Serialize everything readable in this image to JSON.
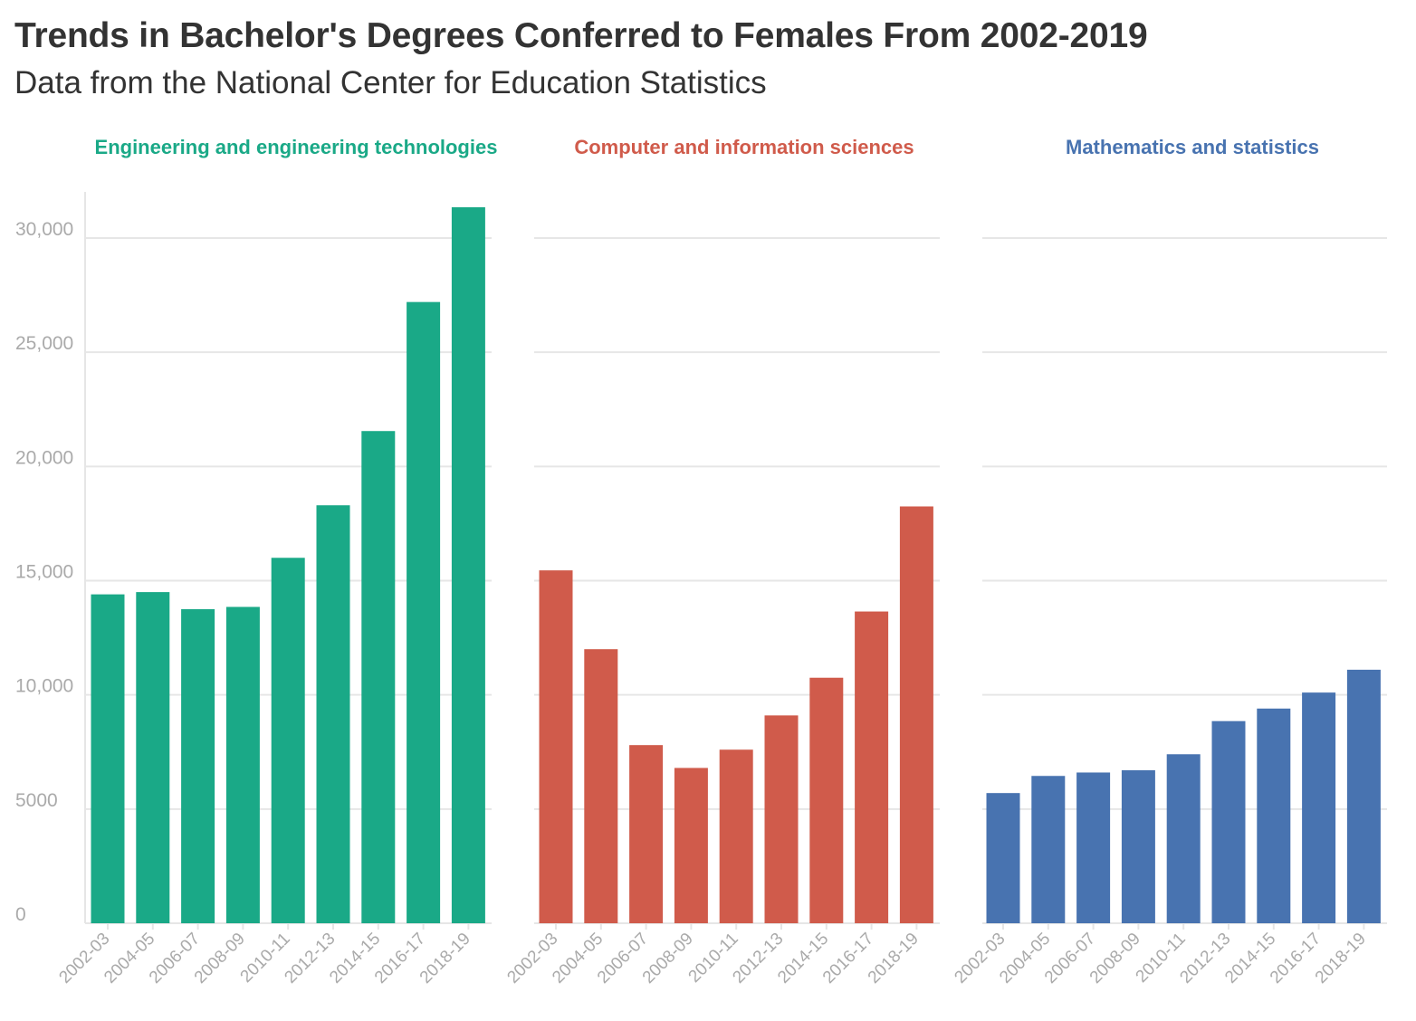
{
  "title": "Trends in Bachelor's Degrees Conferred to Females From 2002-2019",
  "subtitle": "Data from the National Center for Education Statistics",
  "chart_data": [
    {
      "type": "bar",
      "title": "Engineering and engineering technologies",
      "color": "#1aa987",
      "categories": [
        "2002-03",
        "2004-05",
        "2006-07",
        "2008-09",
        "2010-11",
        "2012-13",
        "2014-15",
        "2016-17",
        "2018-19"
      ],
      "values": [
        14400,
        14500,
        13750,
        13850,
        16000,
        18300,
        21550,
        27200,
        31350
      ],
      "ylim": [
        0,
        32000
      ],
      "yticks": [
        0,
        5000,
        10000,
        15000,
        20000,
        25000,
        30000
      ],
      "ytick_labels": [
        "0",
        "5000",
        "10,000",
        "15,000",
        "20,000",
        "25,000",
        "30,000"
      ],
      "xlabel": "",
      "ylabel": ""
    },
    {
      "type": "bar",
      "title": "Computer and information sciences",
      "color": "#d05b4b",
      "categories": [
        "2002-03",
        "2004-05",
        "2006-07",
        "2008-09",
        "2010-11",
        "2012-13",
        "2014-15",
        "2016-17",
        "2018-19"
      ],
      "values": [
        15450,
        12000,
        7800,
        6800,
        7600,
        9100,
        10750,
        13650,
        18250
      ],
      "ylim": [
        0,
        32000
      ],
      "xlabel": "",
      "ylabel": ""
    },
    {
      "type": "bar",
      "title": "Mathematics and statistics",
      "color": "#4873b0",
      "categories": [
        "2002-03",
        "2004-05",
        "2006-07",
        "2008-09",
        "2010-11",
        "2012-13",
        "2014-15",
        "2016-17",
        "2018-19"
      ],
      "values": [
        5700,
        6450,
        6600,
        6700,
        7400,
        8850,
        9400,
        10100,
        11100
      ],
      "ylim": [
        0,
        32000
      ],
      "xlabel": "",
      "ylabel": ""
    }
  ]
}
